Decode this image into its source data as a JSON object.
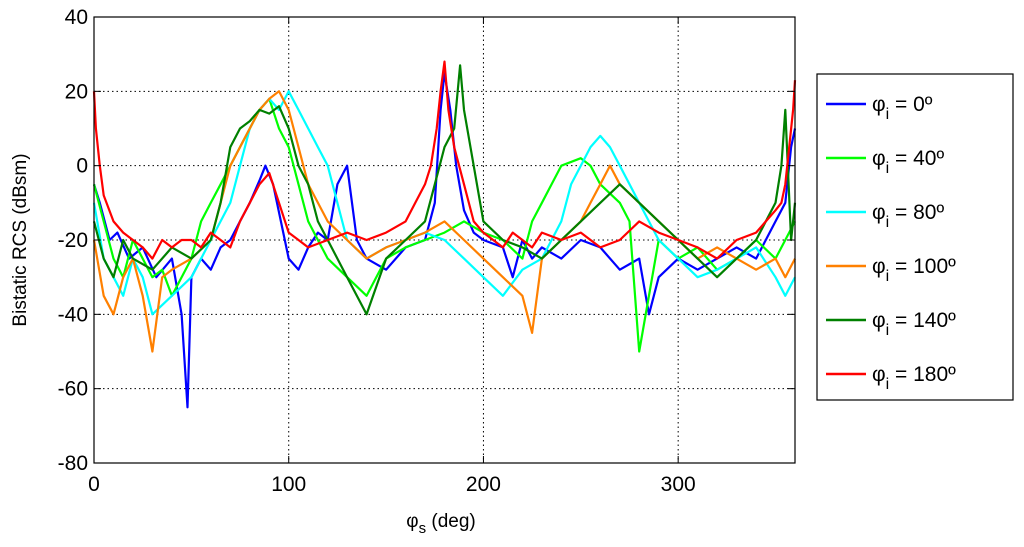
{
  "chart_data": {
    "type": "line",
    "xlabel": "φs (deg)",
    "xlabel_parts": {
      "symbol": "φ",
      "subscript": "s",
      "rest": " (deg)"
    },
    "ylabel": "Bistatic RCS (dBsm)",
    "xlim": [
      0,
      360
    ],
    "ylim": [
      -80,
      40
    ],
    "xticks": [
      0,
      100,
      200,
      300
    ],
    "yticks": [
      -80,
      -60,
      -40,
      -20,
      0,
      20,
      40
    ],
    "grid": true,
    "legend_position": "right",
    "series": [
      {
        "name": "φi = 0º",
        "label_parts": {
          "symbol": "φ",
          "subscript": "i",
          "rest": " = 0º"
        },
        "color": "#0000ff",
        "x": [
          0,
          3,
          8,
          12,
          18,
          25,
          32,
          40,
          45,
          48,
          50,
          55,
          60,
          65,
          70,
          75,
          80,
          85,
          88,
          92,
          96,
          100,
          105,
          110,
          115,
          120,
          125,
          130,
          135,
          140,
          150,
          160,
          170,
          175,
          178,
          180,
          183,
          186,
          190,
          195,
          200,
          210,
          215,
          220,
          225,
          230,
          240,
          250,
          260,
          270,
          280,
          285,
          290,
          300,
          310,
          320,
          330,
          340,
          350,
          355,
          358,
          360
        ],
        "y": [
          -5,
          -10,
          -20,
          -18,
          -25,
          -22,
          -30,
          -25,
          -40,
          -65,
          -30,
          -25,
          -28,
          -22,
          -20,
          -15,
          -10,
          -4,
          0,
          -5,
          -15,
          -25,
          -28,
          -22,
          -18,
          -20,
          -5,
          0,
          -20,
          -25,
          -28,
          -22,
          -20,
          -10,
          15,
          25,
          15,
          0,
          -12,
          -18,
          -20,
          -22,
          -30,
          -20,
          -25,
          -22,
          -25,
          -20,
          -22,
          -28,
          -25,
          -40,
          -30,
          -25,
          -28,
          -25,
          -22,
          -25,
          -15,
          -10,
          5,
          10
        ]
      },
      {
        "name": "φi = 40º",
        "label_parts": {
          "symbol": "φ",
          "subscript": "i",
          "rest": " = 40º"
        },
        "color": "#00ff00",
        "x": [
          0,
          5,
          10,
          15,
          20,
          25,
          30,
          35,
          40,
          50,
          55,
          60,
          65,
          70,
          75,
          80,
          85,
          90,
          95,
          100,
          105,
          110,
          115,
          120,
          130,
          140,
          150,
          160,
          170,
          180,
          190,
          200,
          210,
          220,
          225,
          230,
          235,
          240,
          250,
          255,
          260,
          270,
          275,
          280,
          290,
          300,
          310,
          320,
          330,
          340,
          350,
          355,
          360
        ],
        "y": [
          -5,
          -15,
          -25,
          -30,
          -20,
          -25,
          -30,
          -28,
          -35,
          -25,
          -15,
          -10,
          -5,
          0,
          5,
          10,
          15,
          18,
          10,
          5,
          -5,
          -15,
          -20,
          -25,
          -30,
          -35,
          -25,
          -22,
          -20,
          -18,
          -15,
          -18,
          -20,
          -25,
          -15,
          -10,
          -5,
          0,
          2,
          0,
          -5,
          -10,
          -15,
          -50,
          -20,
          -25,
          -22,
          -28,
          -25,
          -20,
          -25,
          -20,
          -15
        ]
      },
      {
        "name": "φi = 80º",
        "label_parts": {
          "symbol": "φ",
          "subscript": "i",
          "rest": " = 80º"
        },
        "color": "#00ffff",
        "x": [
          0,
          5,
          10,
          15,
          20,
          25,
          30,
          40,
          50,
          60,
          70,
          75,
          80,
          85,
          90,
          95,
          100,
          105,
          110,
          115,
          120,
          130,
          140,
          150,
          160,
          170,
          180,
          190,
          200,
          210,
          220,
          230,
          240,
          245,
          250,
          255,
          260,
          265,
          270,
          280,
          290,
          300,
          310,
          320,
          330,
          340,
          350,
          355,
          360
        ],
        "y": [
          -10,
          -25,
          -30,
          -35,
          -25,
          -30,
          -40,
          -35,
          -30,
          -20,
          -10,
          0,
          10,
          15,
          18,
          15,
          20,
          15,
          10,
          5,
          0,
          -20,
          -25,
          -22,
          -20,
          -18,
          -20,
          -25,
          -30,
          -35,
          -28,
          -25,
          -15,
          -5,
          0,
          5,
          8,
          5,
          0,
          -10,
          -20,
          -25,
          -30,
          -28,
          -25,
          -22,
          -30,
          -35,
          -30
        ]
      },
      {
        "name": "φi = 100º",
        "label_parts": {
          "symbol": "φ",
          "subscript": "i",
          "rest": " = 100º"
        },
        "color": "#ff8000",
        "x": [
          0,
          5,
          10,
          15,
          20,
          25,
          30,
          35,
          40,
          50,
          60,
          65,
          70,
          75,
          80,
          85,
          90,
          95,
          100,
          105,
          110,
          120,
          130,
          140,
          150,
          160,
          170,
          180,
          190,
          200,
          210,
          220,
          225,
          230,
          240,
          250,
          255,
          260,
          265,
          270,
          280,
          290,
          300,
          310,
          320,
          330,
          340,
          350,
          355,
          360
        ],
        "y": [
          -20,
          -35,
          -40,
          -30,
          -25,
          -35,
          -50,
          -30,
          -28,
          -25,
          -20,
          -10,
          0,
          5,
          10,
          15,
          18,
          20,
          15,
          5,
          -5,
          -15,
          -20,
          -25,
          -22,
          -20,
          -18,
          -15,
          -20,
          -25,
          -30,
          -35,
          -45,
          -25,
          -20,
          -15,
          -10,
          -5,
          0,
          -5,
          -10,
          -15,
          -20,
          -25,
          -22,
          -25,
          -28,
          -25,
          -30,
          -25
        ]
      },
      {
        "name": "φi = 140º",
        "label_parts": {
          "symbol": "φ",
          "subscript": "i",
          "rest": " = 140º"
        },
        "color": "#008000",
        "x": [
          0,
          5,
          10,
          15,
          20,
          30,
          40,
          50,
          60,
          65,
          70,
          75,
          80,
          85,
          90,
          95,
          100,
          105,
          110,
          115,
          120,
          130,
          140,
          150,
          160,
          170,
          175,
          180,
          185,
          188,
          190,
          195,
          200,
          210,
          220,
          230,
          240,
          250,
          260,
          270,
          280,
          290,
          300,
          310,
          320,
          330,
          340,
          345,
          350,
          353,
          355,
          358,
          360
        ],
        "y": [
          -15,
          -25,
          -30,
          -20,
          -25,
          -28,
          -22,
          -25,
          -20,
          -10,
          5,
          10,
          12,
          15,
          14,
          16,
          10,
          0,
          -5,
          -15,
          -20,
          -30,
          -40,
          -25,
          -20,
          -15,
          -5,
          5,
          10,
          27,
          15,
          0,
          -15,
          -20,
          -22,
          -25,
          -20,
          -15,
          -10,
          -5,
          -10,
          -15,
          -20,
          -25,
          -30,
          -25,
          -20,
          -15,
          -10,
          0,
          15,
          -20,
          -10
        ]
      },
      {
        "name": "φi = 180º",
        "label_parts": {
          "symbol": "φ",
          "subscript": "i",
          "rest": " = 180º"
        },
        "color": "#ff0000",
        "x": [
          0,
          1,
          3,
          5,
          10,
          15,
          20,
          25,
          30,
          35,
          40,
          45,
          50,
          55,
          60,
          65,
          70,
          75,
          80,
          85,
          90,
          95,
          100,
          105,
          110,
          120,
          130,
          140,
          150,
          160,
          165,
          170,
          173,
          176,
          178,
          180,
          182,
          185,
          190,
          195,
          200,
          205,
          210,
          215,
          220,
          225,
          230,
          240,
          250,
          260,
          270,
          280,
          290,
          300,
          310,
          320,
          330,
          340,
          345,
          350,
          353,
          355,
          357,
          359,
          360
        ],
        "y": [
          20,
          10,
          0,
          -8,
          -15,
          -18,
          -20,
          -22,
          -25,
          -20,
          -22,
          -20,
          -20,
          -22,
          -18,
          -20,
          -22,
          -15,
          -10,
          -5,
          -2,
          -10,
          -18,
          -20,
          -22,
          -20,
          -18,
          -20,
          -18,
          -15,
          -10,
          -5,
          0,
          10,
          20,
          28,
          15,
          5,
          -5,
          -15,
          -18,
          -20,
          -22,
          -18,
          -20,
          -22,
          -18,
          -20,
          -18,
          -22,
          -20,
          -15,
          -18,
          -20,
          -22,
          -25,
          -20,
          -18,
          -15,
          -12,
          -10,
          -5,
          5,
          15,
          23
        ]
      }
    ]
  }
}
